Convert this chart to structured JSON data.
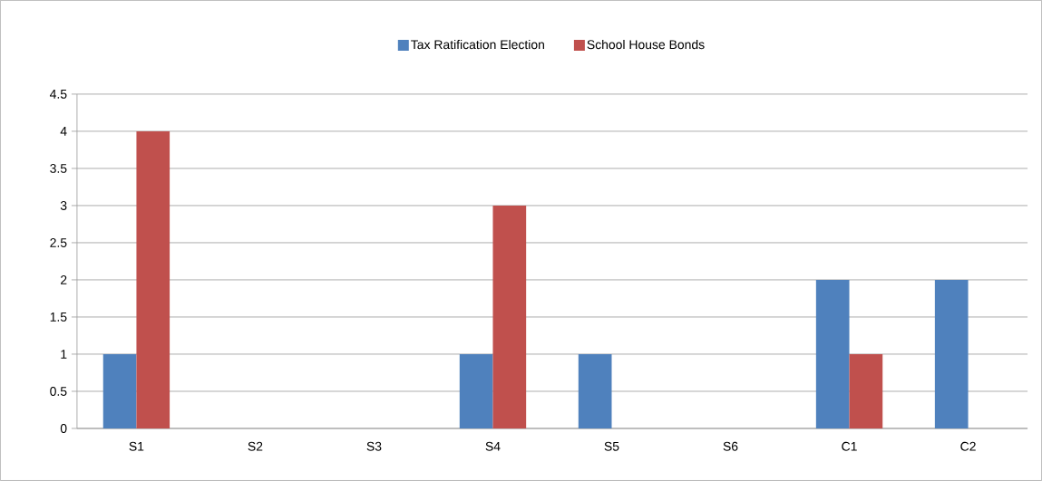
{
  "chart_data": {
    "type": "bar",
    "categories": [
      "S1",
      "S2",
      "S3",
      "S4",
      "S5",
      "S6",
      "C1",
      "C2"
    ],
    "series": [
      {
        "name": "Tax Ratification Election",
        "color": "#4f81bd",
        "values": [
          1,
          0,
          0,
          1,
          1,
          0,
          2,
          2
        ]
      },
      {
        "name": "School House Bonds",
        "color": "#c0504d",
        "values": [
          4,
          0,
          0,
          3,
          0,
          0,
          1,
          0
        ]
      }
    ],
    "ylim": [
      0,
      4.5
    ],
    "yticks": [
      0,
      0.5,
      1,
      1.5,
      2,
      2.5,
      3,
      3.5,
      4,
      4.5
    ],
    "grid": "y",
    "legend": "top"
  }
}
